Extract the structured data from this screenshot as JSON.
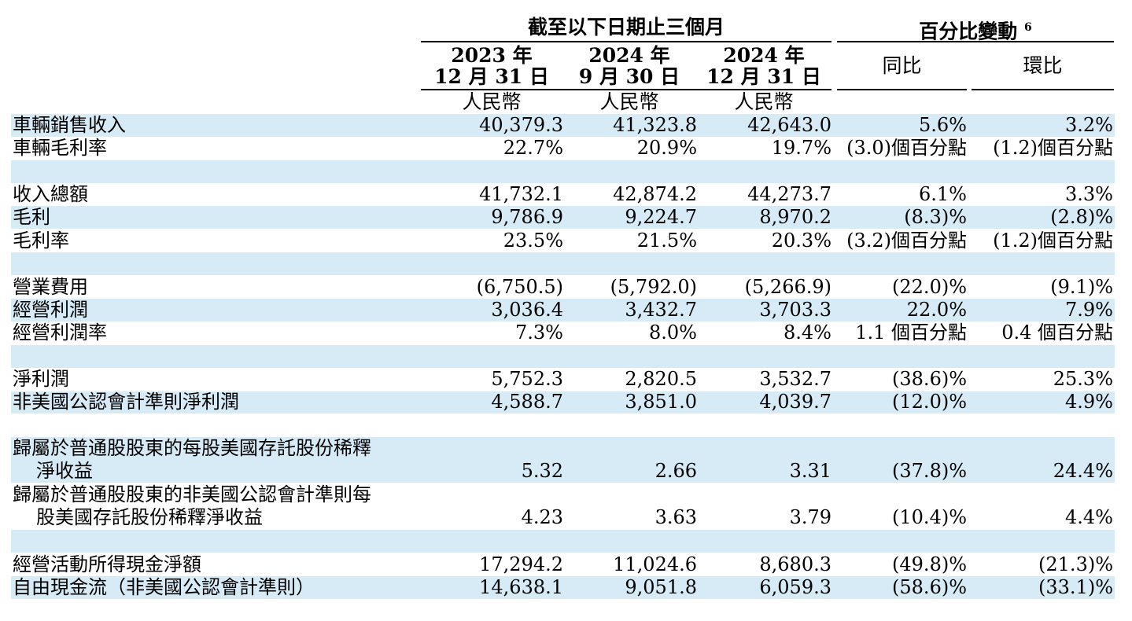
{
  "header": {
    "period_group": "截至以下日期止三個月",
    "change_group": "百分比變動",
    "change_footnote": "6",
    "columns": [
      {
        "line1": "2023 年",
        "line2": "12 月 31 日",
        "currency": "人民幣"
      },
      {
        "line1": "2024 年",
        "line2": "9 月 30 日",
        "currency": "人民幣"
      },
      {
        "line1": "2024 年",
        "line2": "12 月 31 日",
        "currency": "人民幣"
      }
    ],
    "yoy": "同比",
    "qoq": "環比"
  },
  "rows": [
    {
      "label": "車輛銷售收入",
      "values": [
        "40,379.3",
        "41,323.8",
        "42,643.0",
        "5.6%",
        "3.2%"
      ]
    },
    {
      "label": "車輛毛利率",
      "values": [
        "22.7%",
        "20.9%",
        "19.7%",
        "(3.0)個百分點",
        "(1.2)個百分點"
      ]
    },
    {
      "label": "收入總額",
      "values": [
        "41,732.1",
        "42,874.2",
        "44,273.7",
        "6.1%",
        "3.3%"
      ]
    },
    {
      "label": "毛利",
      "values": [
        "9,786.9",
        "9,224.7",
        "8,970.2",
        "(8.3)%",
        "(2.8)%"
      ]
    },
    {
      "label": "毛利率",
      "values": [
        "23.5%",
        "21.5%",
        "20.3%",
        "(3.2)個百分點",
        "(1.2)個百分點"
      ]
    },
    {
      "label": "營業費用",
      "values": [
        "(6,750.5)",
        "(5,792.0)",
        "(5,266.9)",
        "(22.0)%",
        "(9.1)%"
      ]
    },
    {
      "label": "經營利潤",
      "values": [
        "3,036.4",
        "3,432.7",
        "3,703.3",
        "22.0%",
        "7.9%"
      ]
    },
    {
      "label": "經營利潤率",
      "values": [
        "7.3%",
        "8.0%",
        "8.4%",
        "1.1 個百分點",
        "0.4 個百分點"
      ]
    },
    {
      "label": "淨利潤",
      "values": [
        "5,752.3",
        "2,820.5",
        "3,532.7",
        "(38.6)%",
        "25.3%"
      ]
    },
    {
      "label": "非美國公認會計準則淨利潤",
      "values": [
        "4,588.7",
        "3,851.0",
        "4,039.7",
        "(12.0)%",
        "4.9%"
      ]
    },
    {
      "label": "歸屬於普通股股東的每股美國存託股份稀釋",
      "label2": "淨收益",
      "values": [
        "5.32",
        "2.66",
        "3.31",
        "(37.8)%",
        "24.4%"
      ]
    },
    {
      "label": "歸屬於普通股股東的非美國公認會計準則每",
      "label2": "股美國存託股份稀釋淨收益",
      "values": [
        "4.23",
        "3.63",
        "3.79",
        "(10.4)%",
        "4.4%"
      ]
    },
    {
      "label": "經營活動所得現金淨額",
      "values": [
        "17,294.2",
        "11,024.6",
        "8,680.3",
        "(49.8)%",
        "(21.3)%"
      ]
    },
    {
      "label": "自由現金流（非美國公認會計準則）",
      "values": [
        "14,638.1",
        "9,051.8",
        "6,059.3",
        "(58.6)%",
        "(33.1)%"
      ]
    }
  ],
  "colors": {
    "band": "#d7ebf7",
    "rule": "#000000",
    "text": "#000000"
  }
}
